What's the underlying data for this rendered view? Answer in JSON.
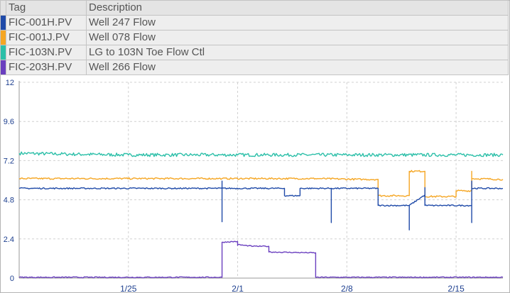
{
  "legend": {
    "headers": {
      "tag": "Tag",
      "description": "Description"
    },
    "rows": [
      {
        "tag": "FIC-001H.PV",
        "description": "Well 247 Flow",
        "color": "#1f4aa8"
      },
      {
        "tag": "FIC-001J.PV",
        "description": "Well 078 Flow",
        "color": "#f5a623"
      },
      {
        "tag": "FIC-103N.PV",
        "description": "LG to 103N Toe Flow Ctl",
        "color": "#2bbfa8"
      },
      {
        "tag": "FIC-203H.PV",
        "description": "Well 266 Flow",
        "color": "#6a3fbf"
      }
    ]
  },
  "chart_data": {
    "type": "line",
    "x_is_date": true,
    "xlim": [
      "2023-01-18",
      "2023-02-18"
    ],
    "ylim": [
      0,
      12
    ],
    "y_ticks": [
      "0",
      "2.4",
      "4.8",
      "7.2",
      "9.6",
      "12"
    ],
    "y_tick_values": [
      0,
      2.4,
      4.8,
      7.2,
      9.6,
      12
    ],
    "x_ticks": [
      {
        "label": "1/25",
        "date": "2023-01-25"
      },
      {
        "label": "2/1",
        "date": "2023-02-01"
      },
      {
        "label": "2/8",
        "date": "2023-02-08"
      },
      {
        "label": "2/15",
        "date": "2023-02-15"
      }
    ],
    "grid": true,
    "series": [
      {
        "name": "FIC-103N.PV",
        "color": "#2bbfa8",
        "noise": 0.1,
        "points": [
          [
            "2023-01-18",
            7.65
          ],
          [
            "2023-01-21",
            7.6
          ],
          [
            "2023-01-25",
            7.55
          ],
          [
            "2023-02-01",
            7.55
          ],
          [
            "2023-02-08",
            7.55
          ],
          [
            "2023-02-15",
            7.55
          ],
          [
            "2023-02-18",
            7.55
          ]
        ]
      },
      {
        "name": "FIC-001J.PV",
        "color": "#f5a623",
        "noise": 0.05,
        "points": [
          [
            "2023-01-18",
            6.1
          ],
          [
            "2023-01-31",
            6.1
          ],
          [
            "2023-02-06",
            6.1
          ],
          [
            "2023-02-09",
            6.05
          ],
          [
            "2023-02-10",
            6.05
          ],
          [
            "2023-02-10",
            5.05
          ],
          [
            "2023-02-12",
            5.05
          ],
          [
            "2023-02-12",
            5.3
          ],
          [
            "2023-02-12",
            6.55
          ],
          [
            "2023-02-12",
            6.55
          ],
          [
            "2023-02-13",
            6.55
          ],
          [
            "2023-02-13",
            5.0
          ],
          [
            "2023-02-15",
            5.0
          ],
          [
            "2023-02-15",
            5.35
          ],
          [
            "2023-02-16",
            5.35
          ],
          [
            "2023-02-16",
            6.55
          ],
          [
            "2023-02-16",
            6.1
          ],
          [
            "2023-02-18",
            6.05
          ]
        ]
      },
      {
        "name": "FIC-001H.PV",
        "color": "#1f4aa8",
        "noise": 0.04,
        "points": [
          [
            "2023-01-18",
            5.5
          ],
          [
            "2023-01-31",
            5.5
          ],
          [
            "2023-01-31",
            3.45
          ],
          [
            "2023-01-31",
            5.95
          ],
          [
            "2023-01-31",
            5.5
          ],
          [
            "2023-02-04",
            5.5
          ],
          [
            "2023-02-04",
            5.05
          ],
          [
            "2023-02-05",
            5.05
          ],
          [
            "2023-02-05",
            5.5
          ],
          [
            "2023-02-07",
            5.5
          ],
          [
            "2023-02-07",
            3.4
          ],
          [
            "2023-02-07",
            5.5
          ],
          [
            "2023-02-10",
            5.5
          ],
          [
            "2023-02-10",
            4.45
          ],
          [
            "2023-02-12",
            4.45
          ],
          [
            "2023-02-12",
            2.95
          ],
          [
            "2023-02-12",
            4.45
          ],
          [
            "2023-02-13",
            5.1
          ],
          [
            "2023-02-13",
            5.55
          ],
          [
            "2023-02-13",
            5.55
          ],
          [
            "2023-02-13",
            4.45
          ],
          [
            "2023-02-16",
            4.45
          ],
          [
            "2023-02-16",
            5.5
          ],
          [
            "2023-02-16",
            5.5
          ],
          [
            "2023-02-16",
            3.4
          ],
          [
            "2023-02-16",
            5.95
          ],
          [
            "2023-02-16",
            5.5
          ],
          [
            "2023-02-18",
            5.5
          ]
        ]
      },
      {
        "name": "FIC-203H.PV",
        "color": "#6a3fbf",
        "noise": 0.03,
        "points": [
          [
            "2023-01-18",
            0.05
          ],
          [
            "2023-01-31",
            0.05
          ],
          [
            "2023-01-31",
            2.2
          ],
          [
            "2023-02-01",
            2.25
          ],
          [
            "2023-02-01",
            2.0
          ],
          [
            "2023-02-01",
            2.05
          ],
          [
            "2023-02-02",
            1.95
          ],
          [
            "2023-02-03",
            1.95
          ],
          [
            "2023-02-03",
            1.75
          ],
          [
            "2023-02-03",
            1.6
          ],
          [
            "2023-02-06",
            1.55
          ],
          [
            "2023-02-06",
            0.05
          ],
          [
            "2023-02-18",
            0.05
          ]
        ]
      }
    ]
  }
}
